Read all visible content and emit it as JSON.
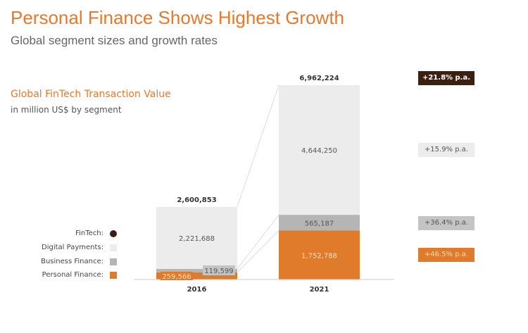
{
  "header": {
    "title": "Personal Finance Shows Highest Growth",
    "subtitle": "Global segment sizes and growth rates"
  },
  "chart_data": {
    "type": "bar",
    "stacked": true,
    "title": "Global FinTech Transaction Value",
    "subtitle": "in million US$ by segment",
    "categories": [
      "2016",
      "2021"
    ],
    "series": [
      {
        "name": "Personal Finance:",
        "values": [
          259566,
          1752788
        ],
        "labels": [
          "259,566",
          "1,752,788"
        ],
        "color": "#e07b2b",
        "growth": "+46.5% p.a."
      },
      {
        "name": "Business Finance:",
        "values": [
          119599,
          565187
        ],
        "labels": [
          "119,599",
          "565,187"
        ],
        "color": "#b5b5b5",
        "growth": "+36.4% p.a."
      },
      {
        "name": "Digital Payments:",
        "values": [
          2221688,
          4644250
        ],
        "labels": [
          "2,221,688",
          "4,644,250"
        ],
        "color": "#ececec",
        "growth": "+15.9% p.a."
      }
    ],
    "totals": {
      "name": "FinTech:",
      "values": [
        2600853,
        6962224
      ],
      "labels": [
        "2,600,853",
        "6,962,224"
      ],
      "color": "#3d1f10",
      "growth": "+21.8% p.a."
    },
    "legend_position": "left",
    "grid": false
  }
}
